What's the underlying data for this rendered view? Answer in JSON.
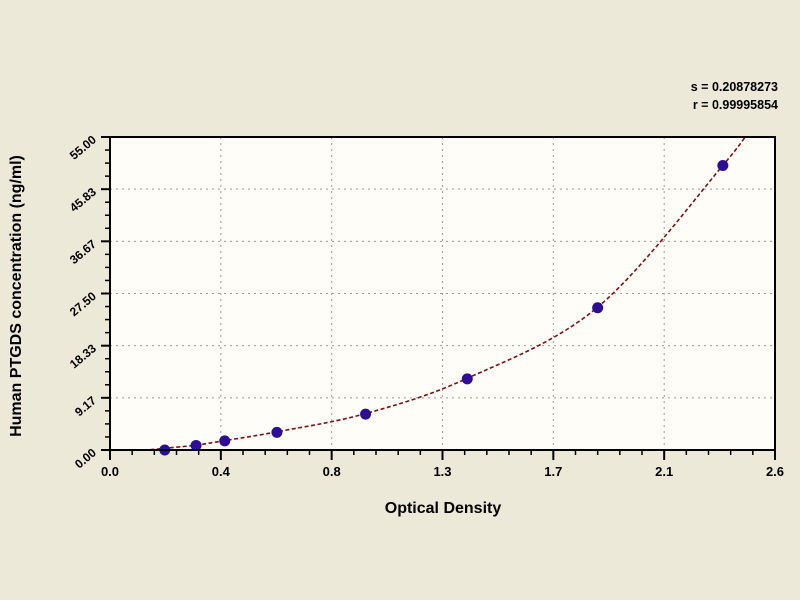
{
  "colors": {
    "background": "#ECE9D8",
    "plot_background": "#FEFDF8",
    "frame": "#000000",
    "grid": "#9A9A9A",
    "tick": "#000000",
    "text": "#000000",
    "point_fill": "#2D0D96",
    "curve_stroke": "#7A1212"
  },
  "chart_data": {
    "type": "scatter",
    "title": "",
    "xlabel": "Optical Density",
    "ylabel": "Human PTGDS concentration (ng/ml)",
    "xlim": [
      0,
      2.55
    ],
    "ylim": [
      0,
      55
    ],
    "grid": "dashed gray gridlines at major ticks",
    "legend_position": "none",
    "x_ticks": [
      {
        "value": 0,
        "label": "0.0"
      },
      {
        "value": 0.425,
        "label": "0.4"
      },
      {
        "value": 0.85,
        "label": "0.8"
      },
      {
        "value": 1.275,
        "label": "1.3"
      },
      {
        "value": 1.7,
        "label": "1.7"
      },
      {
        "value": 2.125,
        "label": "2.1"
      },
      {
        "value": 2.55,
        "label": "2.6"
      }
    ],
    "y_ticks": [
      {
        "value": 0,
        "label": "0.00"
      },
      {
        "value": 9.17,
        "label": "9.17"
      },
      {
        "value": 18.33,
        "label": "18.33"
      },
      {
        "value": 27.5,
        "label": "27.50"
      },
      {
        "value": 36.67,
        "label": "36.67"
      },
      {
        "value": 45.83,
        "label": "45.83"
      },
      {
        "value": 55,
        "label": "55.00"
      }
    ],
    "x_minor_per_major": 5,
    "y_minor_per_major": 4,
    "series": [
      {
        "name": "standard-points",
        "type": "scatter",
        "marker": "circle",
        "points": [
          {
            "od": 0.21,
            "conc": 0
          },
          {
            "od": 0.33,
            "conc": 0.8
          },
          {
            "od": 0.44,
            "conc": 1.6
          },
          {
            "od": 0.64,
            "conc": 3.1
          },
          {
            "od": 0.98,
            "conc": 6.3
          },
          {
            "od": 1.37,
            "conc": 12.5
          },
          {
            "od": 1.87,
            "conc": 25
          },
          {
            "od": 2.35,
            "conc": 50
          }
        ]
      },
      {
        "name": "fitted-curve",
        "type": "line",
        "style": "dashed",
        "curve_points": [
          [
            0.155,
            0.05
          ],
          [
            0.21,
            0.3
          ],
          [
            0.33,
            0.85
          ],
          [
            0.44,
            1.65
          ],
          [
            0.64,
            3.2
          ],
          [
            0.98,
            6.4
          ],
          [
            1.37,
            12.6
          ],
          [
            1.87,
            25.1
          ],
          [
            2.35,
            50
          ],
          [
            2.47,
            57.5
          ]
        ]
      }
    ],
    "annotations": [
      "s = 0.20878273",
      "r = 0.99995854"
    ]
  }
}
